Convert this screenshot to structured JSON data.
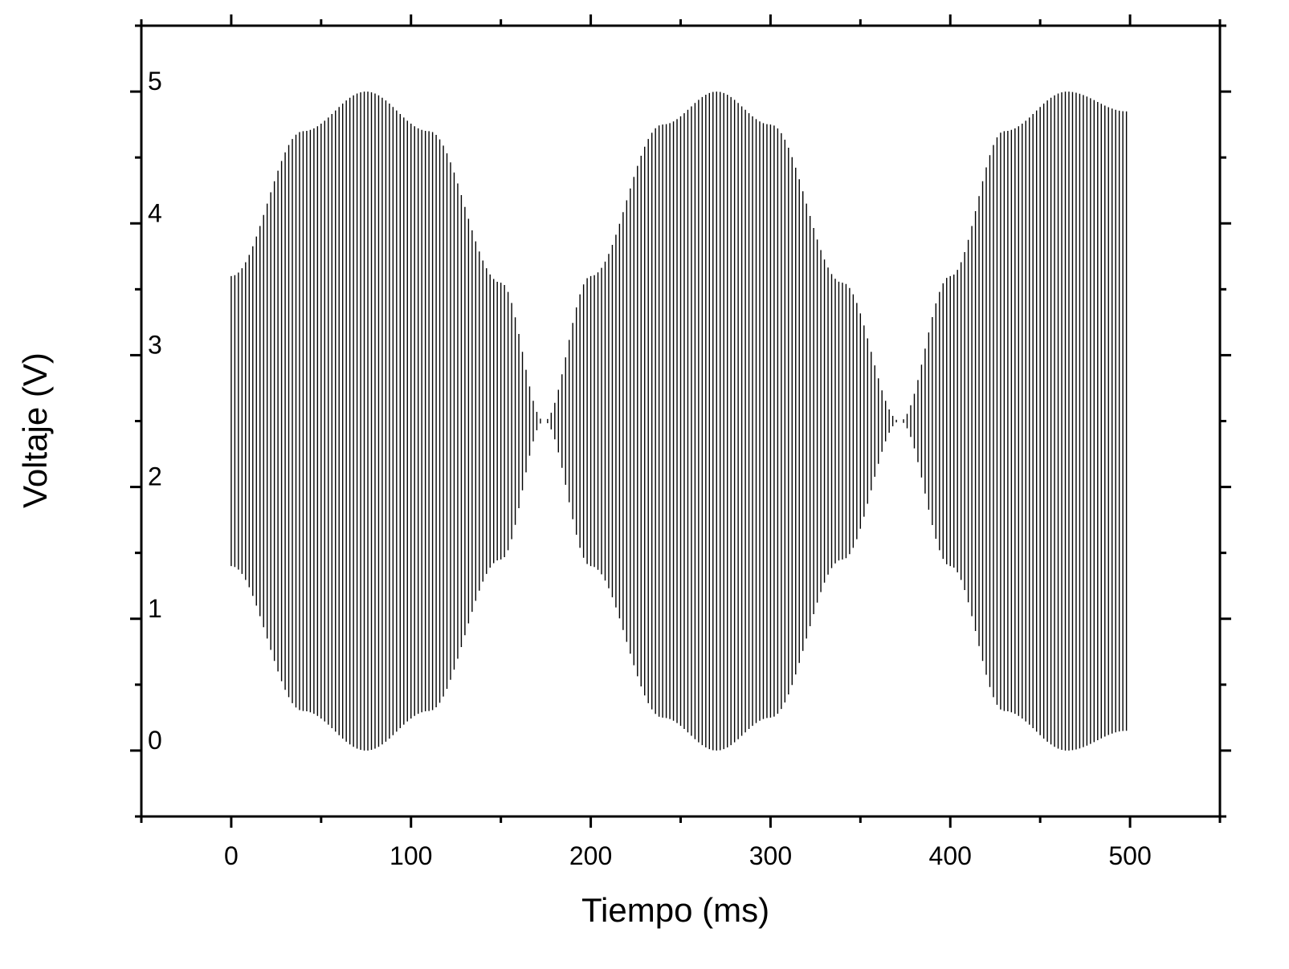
{
  "chart_data": {
    "type": "line",
    "title": "",
    "xlabel": "Tiempo (ms)",
    "ylabel": "Voltaje (V)",
    "xlim": [
      -50,
      550
    ],
    "ylim": [
      -0.5,
      5.5
    ],
    "x_ticks": [
      0,
      100,
      200,
      300,
      400,
      500
    ],
    "x_tick_labels": [
      "0",
      "100",
      "200",
      "300",
      "400",
      "500"
    ],
    "y_ticks": [
      0,
      1,
      2,
      3,
      4,
      5
    ],
    "y_tick_labels": [
      "0",
      "1",
      "2",
      "3",
      "4",
      "5"
    ],
    "x_minor_step": 50,
    "y_minor_step": 0.5,
    "grid": false,
    "legend": "none",
    "series": [
      {
        "offset_V": 2.5,
        "x_start": 0,
        "x_end": 498,
        "carrier_period_ms": 2,
        "envelope": {
          "x": [
            0,
            40,
            75,
            110,
            150,
            174,
            200,
            240,
            270,
            300,
            340,
            372,
            400,
            430,
            465,
            498
          ],
          "amplitude": [
            1.1,
            2.2,
            2.5,
            2.2,
            1.05,
            0.0,
            1.1,
            2.25,
            2.5,
            2.25,
            1.05,
            0.0,
            1.1,
            2.2,
            2.5,
            2.35
          ]
        },
        "color": "#000000"
      }
    ]
  }
}
